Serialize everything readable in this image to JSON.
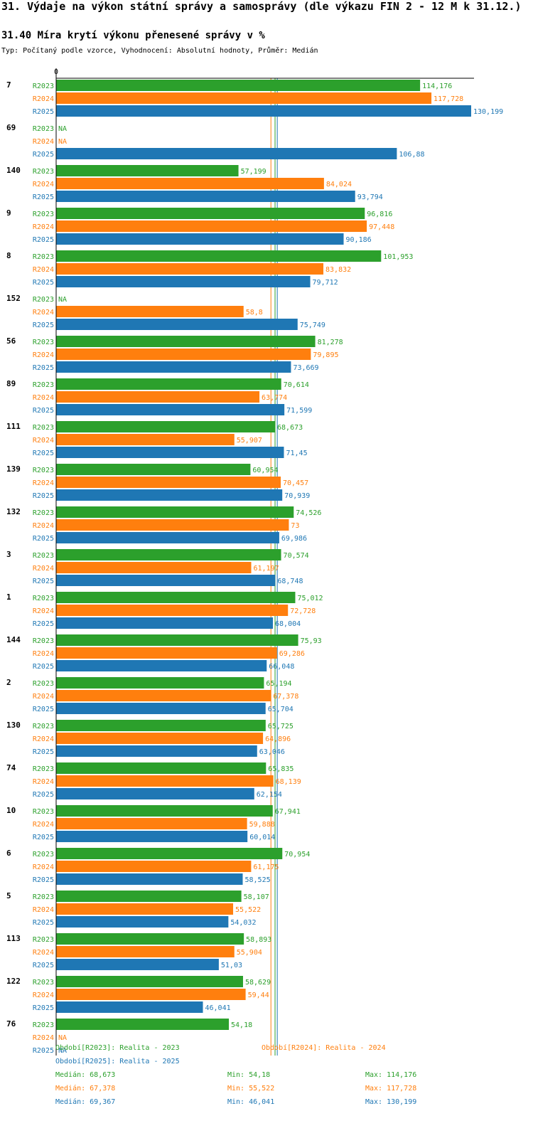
{
  "page": {
    "title": "31. Výdaje na výkon státní správy a samosprávy (dle výkazu FIN 2 - 12 M k 31.12.)"
  },
  "chart_data": {
    "type": "bar",
    "orientation": "horizontal",
    "title": "31.40 Míra krytí výkonu přenesené správy v %",
    "subtitle": "Typ: Počítaný podle vzorce, Vyhodnocení: Absolutní hodnoty, Průměr: Medián",
    "axis_zero_label": "0",
    "xlim": [
      0,
      130.199
    ],
    "na_label": "NA",
    "series": [
      {
        "key": "R2023",
        "label": "R2023",
        "color": "#2ca02c",
        "period": "Období[R2023]: Realita - 2023",
        "median": 68.673,
        "median_text": "Medián: 68,673",
        "min_text": "Min: 54,18",
        "max_text": "Max: 114,176"
      },
      {
        "key": "R2024",
        "label": "R2024",
        "color": "#ff7f0e",
        "period": "Období[R2024]: Realita - 2024",
        "median": 67.378,
        "median_text": "Medián: 67,378",
        "min_text": "Min: 55,522",
        "max_text": "Max: 117,728"
      },
      {
        "key": "R2025",
        "label": "R2025",
        "color": "#1f77b4",
        "period": "Období[R2025]: Realita - 2025",
        "median": 69.367,
        "median_text": "Medián: 69,367",
        "min_text": "Min: 46,041",
        "max_text": "Max: 130,199"
      }
    ],
    "groups": [
      {
        "id": "7",
        "values": [
          114.176,
          117.728,
          130.199
        ],
        "labels": [
          "114,176",
          "117,728",
          "130,199"
        ]
      },
      {
        "id": "69",
        "values": [
          null,
          null,
          106.88
        ],
        "labels": [
          "NA",
          "NA",
          "106,88"
        ]
      },
      {
        "id": "140",
        "values": [
          57.199,
          84.024,
          93.794
        ],
        "labels": [
          "57,199",
          "84,024",
          "93,794"
        ]
      },
      {
        "id": "9",
        "values": [
          96.816,
          97.448,
          90.186
        ],
        "labels": [
          "96,816",
          "97,448",
          "90,186"
        ]
      },
      {
        "id": "8",
        "values": [
          101.953,
          83.832,
          79.712
        ],
        "labels": [
          "101,953",
          "83,832",
          "79,712"
        ]
      },
      {
        "id": "152",
        "values": [
          null,
          58.8,
          75.749
        ],
        "labels": [
          "NA",
          "58,8",
          "75,749"
        ]
      },
      {
        "id": "56",
        "values": [
          81.278,
          79.895,
          73.669
        ],
        "labels": [
          "81,278",
          "79,895",
          "73,669"
        ]
      },
      {
        "id": "89",
        "values": [
          70.614,
          63.774,
          71.599
        ],
        "labels": [
          "70,614",
          "63,774",
          "71,599"
        ]
      },
      {
        "id": "111",
        "values": [
          68.673,
          55.907,
          71.45
        ],
        "labels": [
          "68,673",
          "55,907",
          "71,45"
        ]
      },
      {
        "id": "139",
        "values": [
          60.954,
          70.457,
          70.939
        ],
        "labels": [
          "60,954",
          "70,457",
          "70,939"
        ]
      },
      {
        "id": "132",
        "values": [
          74.526,
          73,
          69.986
        ],
        "labels": [
          "74,526",
          "73",
          "69,986"
        ]
      },
      {
        "id": "3",
        "values": [
          70.574,
          61.197,
          68.748
        ],
        "labels": [
          "70,574",
          "61,197",
          "68,748"
        ]
      },
      {
        "id": "1",
        "values": [
          75.012,
          72.728,
          68.004
        ],
        "labels": [
          "75,012",
          "72,728",
          "68,004"
        ]
      },
      {
        "id": "144",
        "values": [
          75.93,
          69.286,
          66.048
        ],
        "labels": [
          "75,93",
          "69,286",
          "66,048"
        ]
      },
      {
        "id": "2",
        "values": [
          65.194,
          67.378,
          65.704
        ],
        "labels": [
          "65,194",
          "67,378",
          "65,704"
        ]
      },
      {
        "id": "130",
        "values": [
          65.725,
          64.896,
          63.046
        ],
        "labels": [
          "65,725",
          "64,896",
          "63,046"
        ]
      },
      {
        "id": "74",
        "values": [
          65.835,
          68.139,
          62.154
        ],
        "labels": [
          "65,835",
          "68,139",
          "62,154"
        ]
      },
      {
        "id": "10",
        "values": [
          67.941,
          59.888,
          60.014
        ],
        "labels": [
          "67,941",
          "59,888",
          "60,014"
        ]
      },
      {
        "id": "6",
        "values": [
          70.954,
          61.175,
          58.525
        ],
        "labels": [
          "70,954",
          "61,175",
          "58,525"
        ]
      },
      {
        "id": "5",
        "values": [
          58.107,
          55.522,
          54.032
        ],
        "labels": [
          "58,107",
          "55,522",
          "54,032"
        ]
      },
      {
        "id": "113",
        "values": [
          58.893,
          55.904,
          51.03
        ],
        "labels": [
          "58,893",
          "55,904",
          "51,03"
        ]
      },
      {
        "id": "122",
        "values": [
          58.629,
          59.44,
          46.041
        ],
        "labels": [
          "58,629",
          "59,44",
          "46,041"
        ]
      },
      {
        "id": "76",
        "values": [
          54.18,
          null,
          null
        ],
        "labels": [
          "54,18",
          "NA",
          "NA"
        ]
      }
    ]
  }
}
